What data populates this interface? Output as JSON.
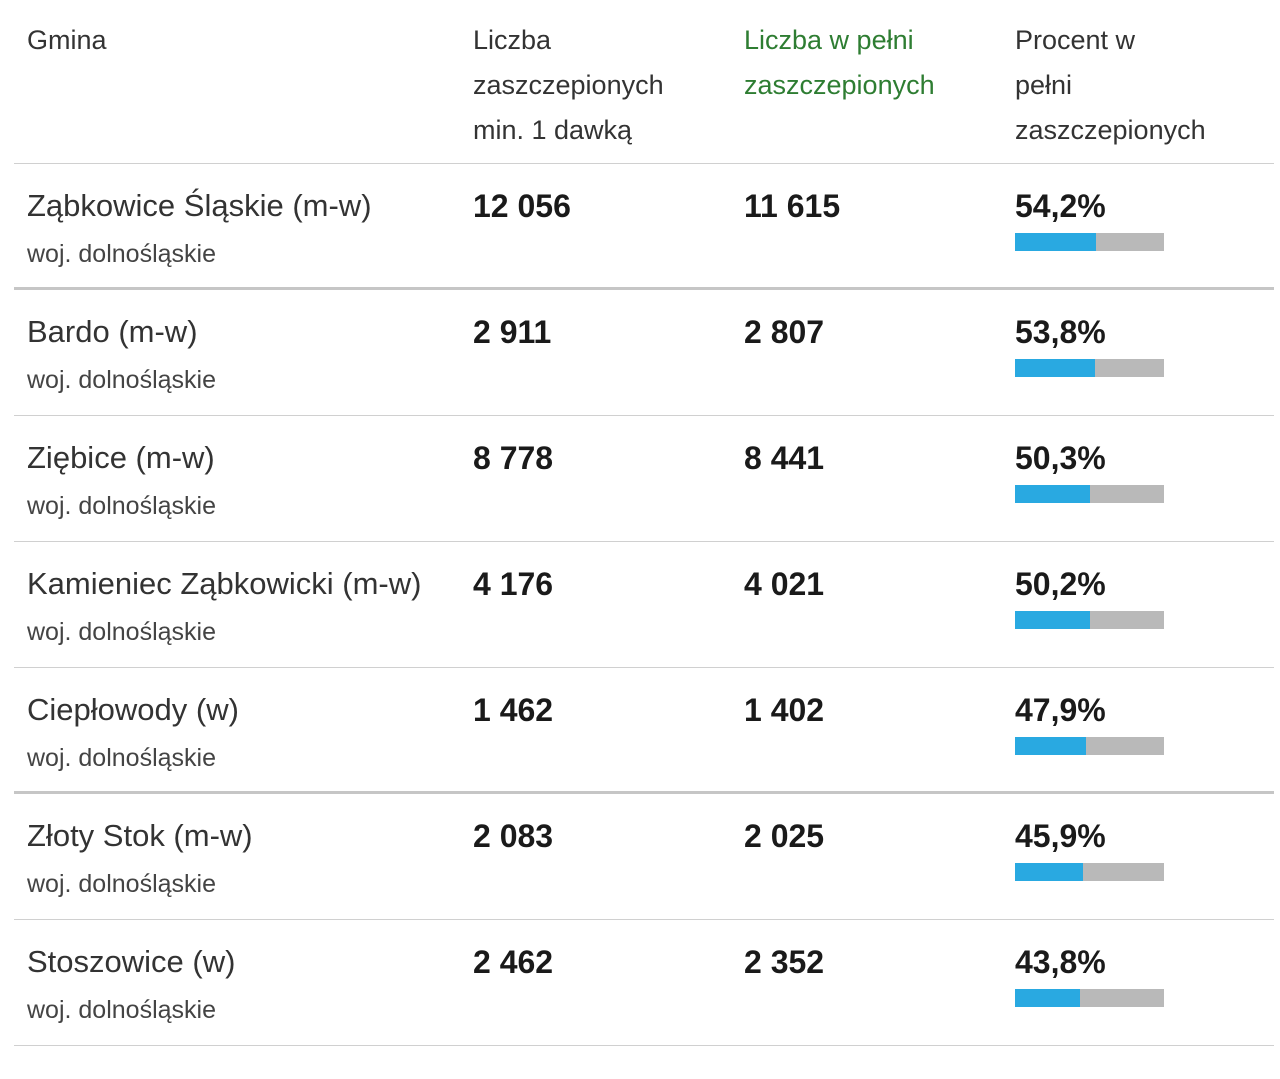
{
  "header": {
    "col1": "Gmina",
    "col2_lines": [
      "Liczba",
      "zaszczepionych",
      "min. 1 dawką"
    ],
    "col3_lines": [
      "Liczba w pełni",
      "zaszczepionych"
    ],
    "col4_lines": [
      "Procent w",
      "pełni",
      "zaszczepionych"
    ]
  },
  "colors": {
    "bar_fill": "#29a9e1",
    "bar_track": "#b9b9b9",
    "header_accent": "#2e7d32"
  },
  "rows": [
    {
      "name": "Ząbkowice Śląskie (m-w)",
      "region": "woj. dolnośląskie",
      "one_dose": "12 056",
      "full": "11 615",
      "percent": "54,2%",
      "percent_value": 54.2
    },
    {
      "name": "Bardo (m-w)",
      "region": "woj. dolnośląskie",
      "one_dose": "2 911",
      "full": "2 807",
      "percent": "53,8%",
      "percent_value": 53.8
    },
    {
      "name": "Ziębice (m-w)",
      "region": "woj. dolnośląskie",
      "one_dose": "8 778",
      "full": "8 441",
      "percent": "50,3%",
      "percent_value": 50.3
    },
    {
      "name": "Kamieniec Ząbkowicki (m-w)",
      "region": "woj. dolnośląskie",
      "one_dose": "4 176",
      "full": "4 021",
      "percent": "50,2%",
      "percent_value": 50.2
    },
    {
      "name": "Ciepłowody (w)",
      "region": "woj. dolnośląskie",
      "one_dose": "1 462",
      "full": "1 402",
      "percent": "47,9%",
      "percent_value": 47.9
    },
    {
      "name": "Złoty Stok (m-w)",
      "region": "woj. dolnośląskie",
      "one_dose": "2 083",
      "full": "2 025",
      "percent": "45,9%",
      "percent_value": 45.9
    },
    {
      "name": "Stoszowice (w)",
      "region": "woj. dolnośląskie",
      "one_dose": "2 462",
      "full": "2 352",
      "percent": "43,8%",
      "percent_value": 43.8
    }
  ]
}
